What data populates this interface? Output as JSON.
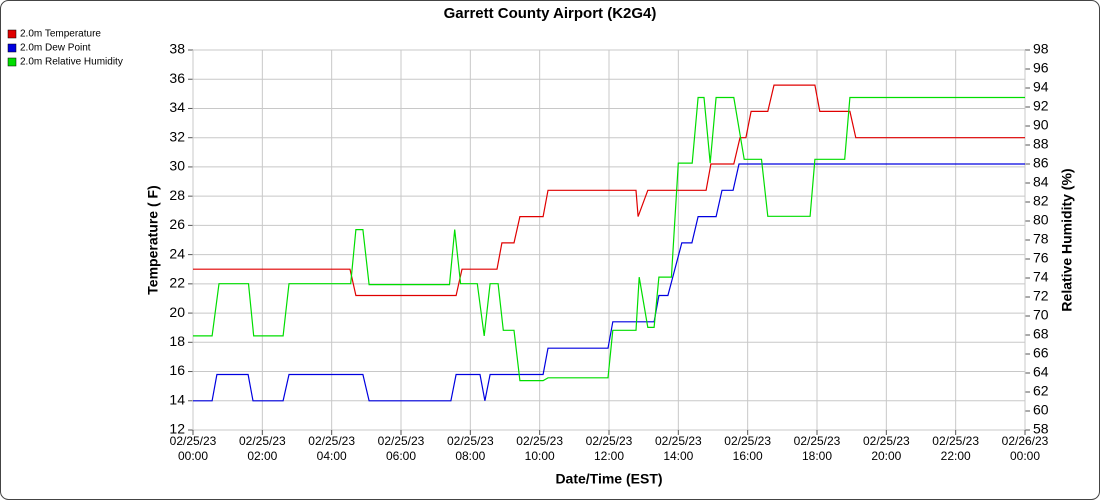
{
  "chart_data": {
    "type": "line",
    "title": "Garrett County Airport (K2G4)",
    "x_label": "Date/Time (EST)",
    "y_label": "Temperature ( F)",
    "y2_label": "Relative Humidity (%)",
    "xlim": [
      0,
      24
    ],
    "xticks": [
      {
        "value": 0,
        "label": "02/25/23 00:00"
      },
      {
        "value": 2,
        "label": "02/25/23 02:00"
      },
      {
        "value": 4,
        "label": "02/25/23 04:00"
      },
      {
        "value": 6,
        "label": "02/25/23 06:00"
      },
      {
        "value": 8,
        "label": "02/25/23 08:00"
      },
      {
        "value": 10,
        "label": "02/25/23 10:00"
      },
      {
        "value": 12,
        "label": "02/25/23 12:00"
      },
      {
        "value": 14,
        "label": "02/25/23 14:00"
      },
      {
        "value": 16,
        "label": "02/25/23 16:00"
      },
      {
        "value": 18,
        "label": "02/25/23 18:00"
      },
      {
        "value": 20,
        "label": "02/25/23 20:00"
      },
      {
        "value": 22,
        "label": "02/25/23 22:00"
      },
      {
        "value": 24,
        "label": "02/26/23 00:00"
      }
    ],
    "ylim": [
      12,
      38
    ],
    "yticks": [
      12,
      14,
      16,
      18,
      20,
      22,
      24,
      26,
      28,
      30,
      32,
      34,
      36,
      38
    ],
    "y2lim": [
      58,
      98
    ],
    "y2ticks": [
      58,
      60,
      62,
      64,
      66,
      68,
      70,
      72,
      74,
      76,
      78,
      80,
      82,
      84,
      86,
      88,
      90,
      92,
      94,
      96,
      98
    ],
    "grid": true,
    "legend": "top-left",
    "series": [
      {
        "name": "2.0m Temperature",
        "color": "#e00000",
        "x": [
          0,
          4.53,
          4.7,
          7.59,
          7.76,
          8.77,
          8.91,
          9.26,
          9.43,
          10.1,
          10.24,
          12.78,
          12.84,
          13.12,
          14.8,
          14.94,
          15.6,
          15.78,
          15.95,
          16.1,
          16.58,
          16.76,
          17.94,
          18.08,
          18.95,
          19.12,
          24
        ],
        "values": [
          23,
          23,
          21.2,
          21.2,
          23,
          23,
          24.8,
          24.8,
          26.6,
          26.6,
          28.4,
          28.4,
          26.6,
          28.4,
          28.4,
          30.2,
          30.2,
          32,
          32,
          33.8,
          33.8,
          35.6,
          35.6,
          33.8,
          33.8,
          32,
          32
        ]
      },
      {
        "name": "2.0m Dew Point",
        "color": "#0000e0",
        "x": [
          0,
          0.55,
          0.69,
          1.59,
          1.73,
          2.6,
          2.77,
          4.9,
          5.08,
          7.44,
          7.59,
          8.28,
          8.42,
          8.57,
          10.1,
          10.24,
          11.97,
          12.11,
          13.3,
          13.44,
          13.7,
          14.1,
          14.39,
          14.57,
          15.09,
          15.26,
          15.58,
          15.75,
          24
        ],
        "values": [
          14,
          14,
          15.8,
          15.8,
          14,
          14,
          15.8,
          15.8,
          14,
          14,
          15.8,
          15.8,
          14,
          15.8,
          15.8,
          17.6,
          17.6,
          19.4,
          19.4,
          21.2,
          21.2,
          24.8,
          24.8,
          26.6,
          26.6,
          28.4,
          28.4,
          30.2,
          30.2
        ]
      },
      {
        "name": "2.0m Relative Humidity",
        "color": "#00dd00",
        "axis": "y2",
        "x": [
          0,
          0.55,
          0.75,
          1.6,
          1.75,
          2.6,
          2.77,
          4.55,
          4.7,
          4.9,
          5.08,
          7.4,
          7.55,
          7.72,
          8.2,
          8.4,
          8.57,
          8.8,
          8.95,
          9.26,
          9.43,
          10.1,
          10.24,
          11.97,
          12.11,
          12.78,
          12.87,
          13.12,
          13.3,
          13.44,
          13.8,
          14.0,
          14.4,
          14.57,
          14.74,
          14.92,
          15.09,
          15.6,
          15.9,
          16.4,
          16.58,
          17.8,
          17.94,
          18.8,
          18.95,
          24
        ],
        "values": [
          67.9,
          67.9,
          73.4,
          73.4,
          67.9,
          67.9,
          73.4,
          73.4,
          79.1,
          79.1,
          73.3,
          73.3,
          79.1,
          73.4,
          73.4,
          67.9,
          73.4,
          73.4,
          68.5,
          68.5,
          63.2,
          63.2,
          63.5,
          63.5,
          68.5,
          68.5,
          74.1,
          68.8,
          68.8,
          74.1,
          74.1,
          86.1,
          86.1,
          93,
          93,
          86.1,
          93,
          93,
          86.5,
          86.5,
          80.5,
          80.5,
          86.5,
          86.5,
          93,
          93
        ]
      }
    ]
  }
}
